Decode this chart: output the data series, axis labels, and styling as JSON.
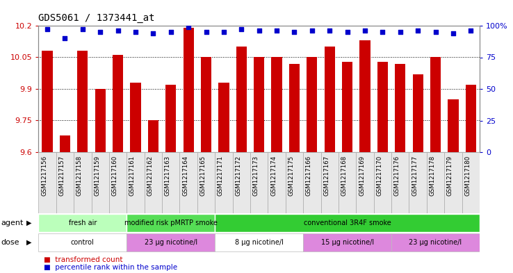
{
  "title": "GDS5061 / 1373441_at",
  "samples": [
    "GSM1217156",
    "GSM1217157",
    "GSM1217158",
    "GSM1217159",
    "GSM1217160",
    "GSM1217161",
    "GSM1217162",
    "GSM1217163",
    "GSM1217164",
    "GSM1217165",
    "GSM1217171",
    "GSM1217172",
    "GSM1217173",
    "GSM1217174",
    "GSM1217175",
    "GSM1217166",
    "GSM1217167",
    "GSM1217168",
    "GSM1217169",
    "GSM1217170",
    "GSM1217176",
    "GSM1217177",
    "GSM1217178",
    "GSM1217179",
    "GSM1217180"
  ],
  "bar_values": [
    10.08,
    9.68,
    10.08,
    9.9,
    10.06,
    9.93,
    9.75,
    9.92,
    10.19,
    10.05,
    9.93,
    10.1,
    10.05,
    10.05,
    10.02,
    10.05,
    10.1,
    10.03,
    10.13,
    10.03,
    10.02,
    9.97,
    10.05,
    9.85,
    9.92
  ],
  "percentile_values": [
    97,
    90,
    97,
    95,
    96,
    95,
    94,
    95,
    99,
    95,
    95,
    97,
    96,
    96,
    95,
    96,
    96,
    95,
    96,
    95,
    95,
    96,
    95,
    94,
    96
  ],
  "bar_color": "#cc0000",
  "dot_color": "#0000cc",
  "ylim_left": [
    9.6,
    10.2
  ],
  "ylim_right": [
    0,
    100
  ],
  "yticks_left": [
    9.6,
    9.75,
    9.9,
    10.05,
    10.2
  ],
  "yticks_right": [
    0,
    25,
    50,
    75,
    100
  ],
  "gridlines": [
    9.75,
    9.9,
    10.05
  ],
  "agent_groups": [
    {
      "label": "fresh air",
      "start": 0,
      "end": 5,
      "color": "#bbffbb"
    },
    {
      "label": "modified risk pMRTP smoke",
      "start": 5,
      "end": 10,
      "color": "#55dd55"
    },
    {
      "label": "conventional 3R4F smoke",
      "start": 10,
      "end": 25,
      "color": "#33cc33"
    }
  ],
  "dose_groups": [
    {
      "label": "control",
      "start": 0,
      "end": 5,
      "color": "#ffffff"
    },
    {
      "label": "23 µg nicotine/l",
      "start": 5,
      "end": 10,
      "color": "#dd88dd"
    },
    {
      "label": "8 µg nicotine/l",
      "start": 10,
      "end": 15,
      "color": "#ffffff"
    },
    {
      "label": "15 µg nicotine/l",
      "start": 15,
      "end": 20,
      "color": "#dd88dd"
    },
    {
      "label": "23 µg nicotine/l",
      "start": 20,
      "end": 25,
      "color": "#dd88dd"
    }
  ],
  "legend_bar_label": "transformed count",
  "legend_dot_label": "percentile rank within the sample",
  "xlabel_agent": "agent",
  "xlabel_dose": "dose",
  "fig_width": 7.38,
  "fig_height": 3.93,
  "dpi": 100
}
